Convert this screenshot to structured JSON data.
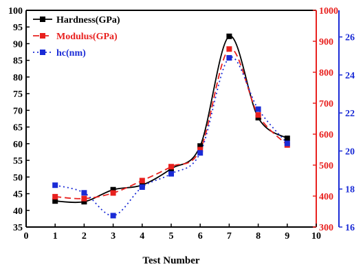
{
  "chart_data": {
    "type": "scatter",
    "title": "",
    "xlabel": "Test Number",
    "x_ticks": [
      "0",
      "1",
      "2",
      "3",
      "4",
      "5",
      "6",
      "7",
      "8",
      "9",
      "10"
    ],
    "xlim": [
      0,
      10
    ],
    "y_left_ticks": [
      "35",
      "40",
      "45",
      "50",
      "55",
      "60",
      "65",
      "70",
      "75",
      "80",
      "85",
      "90",
      "95",
      "100"
    ],
    "y_right1_ticks": [
      "300",
      "400",
      "500",
      "600",
      "700",
      "800",
      "900",
      "1000"
    ],
    "y_right2_ticks": [
      "16",
      "18",
      "20",
      "22",
      "24",
      "26"
    ],
    "axes": {
      "left": {
        "ylim": [
          35,
          100
        ],
        "color": "#000000"
      },
      "right1": {
        "ylim": [
          300,
          1000
        ],
        "color": "#e8201e"
      },
      "right2": {
        "ylim": [
          16,
          27.4
        ],
        "color": "#1a2bd6"
      }
    },
    "legend_position": "top-left",
    "series": [
      {
        "name": "Hardness(GPa)",
        "axis": "left",
        "color": "#000000",
        "line_style": "solid",
        "x": [
          1,
          2,
          3,
          4,
          5,
          6,
          7,
          8,
          9
        ],
        "y": [
          42.8,
          42.6,
          46.2,
          47.6,
          52.5,
          59.3,
          92.2,
          67.8,
          61.6
        ]
      },
      {
        "name": "Modulus(GPa)",
        "axis": "right1",
        "color": "#e8201e",
        "line_style": "dashed",
        "x": [
          1,
          2,
          3,
          4,
          5,
          6,
          7,
          8,
          9
        ],
        "y": [
          398,
          392,
          410,
          450,
          495,
          550,
          875,
          662,
          565
        ]
      },
      {
        "name": "hc(nm)",
        "axis": "right2",
        "color": "#1a2bd6",
        "line_style": "dotted",
        "x": [
          1,
          2,
          3,
          4,
          5,
          6,
          7,
          8,
          9
        ],
        "y": [
          18.2,
          17.8,
          16.6,
          18.1,
          18.8,
          19.9,
          24.9,
          22.2,
          20.4
        ]
      }
    ]
  }
}
